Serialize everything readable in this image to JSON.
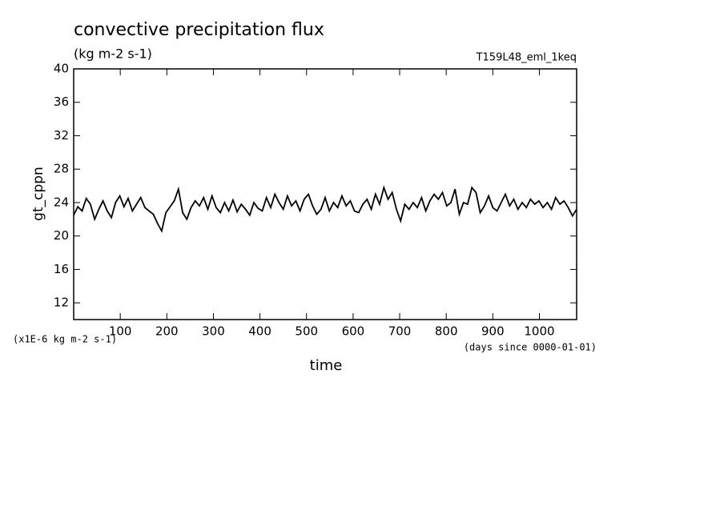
{
  "chart_data": {
    "type": "line",
    "title": "convective precipitation flux",
    "subtitle": "(kg m-2 s-1)",
    "run_label": "T159L48_eml_1keq",
    "ylabel": "gt_cppn",
    "y_units": "(x1E-6 kg m-2 s-1)",
    "xlabel": "time",
    "x_units": "(days since 0000-01-01)",
    "xlim": [
      0,
      1080
    ],
    "ylim": [
      10,
      40
    ],
    "xticks": [
      100,
      200,
      300,
      400,
      500,
      600,
      700,
      800,
      900,
      1000
    ],
    "yticks": [
      12,
      16,
      20,
      24,
      28,
      32,
      36,
      40
    ],
    "x": [
      0,
      9,
      18,
      27,
      36,
      45,
      54,
      63,
      72,
      81,
      90,
      99,
      108,
      117,
      126,
      135,
      144,
      153,
      162,
      171,
      180,
      189,
      198,
      207,
      216,
      225,
      234,
      243,
      252,
      261,
      270,
      279,
      288,
      297,
      306,
      315,
      324,
      333,
      342,
      351,
      360,
      369,
      378,
      387,
      396,
      405,
      414,
      423,
      432,
      441,
      450,
      459,
      468,
      477,
      486,
      495,
      504,
      513,
      522,
      531,
      540,
      549,
      558,
      567,
      576,
      585,
      594,
      603,
      612,
      621,
      630,
      639,
      648,
      657,
      666,
      675,
      684,
      693,
      702,
      711,
      720,
      729,
      738,
      747,
      756,
      765,
      774,
      783,
      792,
      801,
      810,
      819,
      828,
      837,
      846,
      855,
      864,
      873,
      882,
      891,
      900,
      909,
      918,
      927,
      936,
      945,
      954,
      963,
      972,
      981,
      990,
      999,
      1008,
      1017,
      1026,
      1035,
      1044,
      1053,
      1062,
      1071,
      1080
    ],
    "series": [
      {
        "name": "gt_cppn",
        "color": "#000000",
        "values": [
          22.5,
          23.5,
          23,
          24.5,
          23.8,
          22.0,
          23.2,
          24.2,
          23.0,
          22.2,
          24.0,
          24.8,
          23.5,
          24.5,
          23.0,
          23.8,
          24.6,
          23.4,
          23.0,
          22.6,
          21.5,
          20.6,
          22.8,
          23.5,
          24.2,
          25.6,
          22.8,
          22.0,
          23.4,
          24.2,
          23.6,
          24.6,
          23.2,
          24.8,
          23.4,
          22.8,
          24.0,
          23.0,
          24.3,
          22.9,
          23.8,
          23.2,
          22.5,
          24.0,
          23.3,
          23.0,
          24.6,
          23.4,
          25.0,
          24.0,
          23.2,
          24.8,
          23.6,
          24.2,
          23.0,
          24.4,
          25.0,
          23.6,
          22.6,
          23.2,
          24.6,
          23.0,
          24.0,
          23.4,
          24.8,
          23.6,
          24.2,
          23.0,
          22.8,
          23.8,
          24.4,
          23.2,
          25.0,
          23.8,
          25.8,
          24.4,
          25.2,
          23.2,
          21.8,
          23.8,
          23.2,
          24.0,
          23.4,
          24.6,
          23.0,
          24.2,
          25.0,
          24.4,
          25.2,
          23.6,
          24.0,
          25.6,
          22.6,
          24.0,
          23.8,
          25.8,
          25.2,
          22.8,
          23.6,
          24.8,
          23.4,
          23.0,
          24.0,
          25.0,
          23.6,
          24.4,
          23.2,
          24.0,
          23.4,
          24.4,
          23.8,
          24.2,
          23.4,
          24.0,
          23.2,
          24.6,
          23.8,
          24.2,
          23.4,
          22.4,
          23.2
        ]
      }
    ]
  }
}
